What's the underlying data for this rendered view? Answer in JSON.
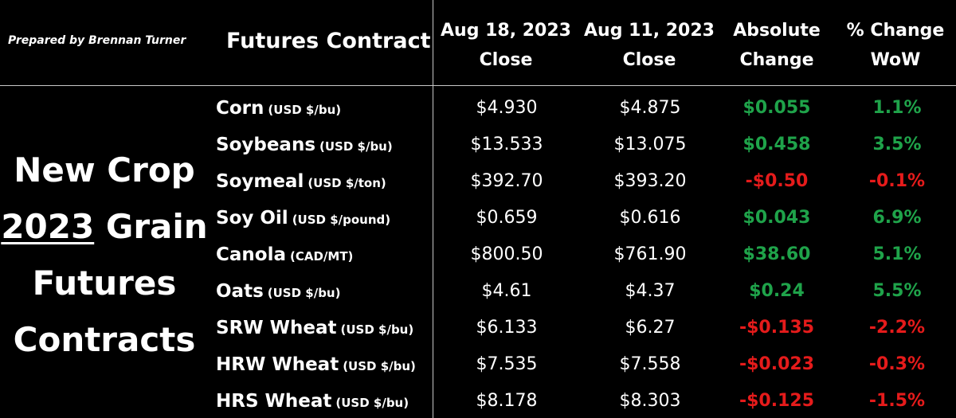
{
  "credit": "Prepared by Brennan Turner",
  "headers": {
    "contract": "Futures Contract",
    "col1": [
      "Aug 18, 2023",
      "Close"
    ],
    "col2": [
      "Aug 11, 2023",
      "Close"
    ],
    "col3": [
      "Absolute",
      "Change"
    ],
    "col4": [
      "% Change",
      "WoW"
    ]
  },
  "side_title": {
    "line1": "New Crop",
    "line2_year": "2023",
    "line2_rest": " Grain",
    "line3": "Futures",
    "line4": "Contracts"
  },
  "colors": {
    "positive": "#1fa34a",
    "negative": "#e51b1b",
    "background": "#000000",
    "text": "#ffffff"
  },
  "rows": [
    {
      "name": "Corn",
      "unit": "(USD $/bu)",
      "aug18": "$4.930",
      "aug11": "$4.875",
      "abs_change": "$0.055",
      "pct_change": "1.1%",
      "direction": "up"
    },
    {
      "name": "Soybeans",
      "unit": "(USD $/bu)",
      "aug18": "$13.533",
      "aug11": "$13.075",
      "abs_change": "$0.458",
      "pct_change": "3.5%",
      "direction": "up"
    },
    {
      "name": "Soymeal",
      "unit": "(USD $/ton)",
      "aug18": "$392.70",
      "aug11": "$393.20",
      "abs_change": "-$0.50",
      "pct_change": "-0.1%",
      "direction": "down"
    },
    {
      "name": "Soy Oil",
      "unit": "(USD $/pound)",
      "aug18": "$0.659",
      "aug11": "$0.616",
      "abs_change": "$0.043",
      "pct_change": "6.9%",
      "direction": "up"
    },
    {
      "name": "Canola",
      "unit": "(CAD/MT)",
      "aug18": "$800.50",
      "aug11": "$761.90",
      "abs_change": "$38.60",
      "pct_change": "5.1%",
      "direction": "up"
    },
    {
      "name": "Oats",
      "unit": "(USD $/bu)",
      "aug18": "$4.61",
      "aug11": "$4.37",
      "abs_change": "$0.24",
      "pct_change": "5.5%",
      "direction": "up"
    },
    {
      "name": "SRW Wheat",
      "unit": "(USD $/bu)",
      "aug18": "$6.133",
      "aug11": "$6.27",
      "abs_change": "-$0.135",
      "pct_change": "-2.2%",
      "direction": "down"
    },
    {
      "name": "HRW Wheat",
      "unit": "(USD $/bu)",
      "aug18": "$7.535",
      "aug11": "$7.558",
      "abs_change": "-$0.023",
      "pct_change": "-0.3%",
      "direction": "down"
    },
    {
      "name": "HRS Wheat",
      "unit": "(USD $/bu)",
      "aug18": "$8.178",
      "aug11": "$8.303",
      "abs_change": "-$0.125",
      "pct_change": "-1.5%",
      "direction": "down"
    }
  ]
}
